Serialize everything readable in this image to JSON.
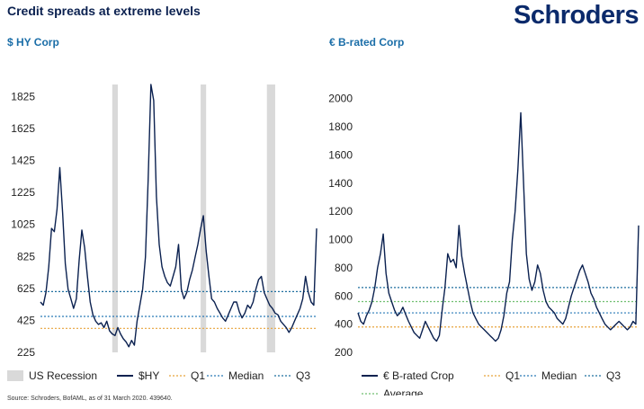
{
  "header": {
    "title": "Credit spreads at extreme levels",
    "logo": "Schroders"
  },
  "footer": {
    "source": "Source: Schroders, BofAML, as of 31 March 2020. 439640."
  },
  "colors": {
    "line": "#0b2150",
    "recession": "#d9d9d9",
    "q1": "#e8a33b",
    "median": "#2a7ab8",
    "q3": "#1f6f9f",
    "average": "#6fbf6f"
  },
  "chart_data": [
    {
      "type": "line",
      "title": "$ HY Corp",
      "ylim": [
        225,
        1900
      ],
      "yticks": [
        225,
        425,
        625,
        825,
        1025,
        1225,
        1425,
        1625,
        1825
      ],
      "x": [
        0,
        1,
        2,
        3,
        4,
        5,
        6,
        7,
        8,
        9,
        10,
        11,
        12,
        13,
        14,
        15,
        16,
        17,
        18,
        19,
        20,
        21,
        22,
        23,
        24,
        25,
        26,
        27,
        28,
        29,
        30,
        31,
        32,
        33,
        34,
        35,
        36,
        37,
        38,
        39,
        40,
        41,
        42,
        43,
        44,
        45,
        46,
        47,
        48,
        49,
        50,
        51,
        52,
        53,
        54,
        55,
        56,
        57,
        58,
        59,
        60,
        61,
        62,
        63,
        64,
        65,
        66,
        67,
        68,
        69,
        70,
        71,
        72,
        73,
        74,
        75,
        76,
        77,
        78,
        79,
        80,
        81,
        82,
        83,
        84,
        85,
        86,
        87,
        88,
        89,
        90,
        91,
        92,
        93,
        94,
        95,
        96,
        97,
        98,
        99,
        100
      ],
      "series": [
        {
          "name": "$HY",
          "values": [
            540,
            520,
            600,
            760,
            1000,
            980,
            1120,
            1380,
            1100,
            780,
            620,
            560,
            500,
            560,
            800,
            990,
            880,
            700,
            540,
            460,
            420,
            400,
            410,
            380,
            420,
            360,
            340,
            330,
            380,
            340,
            310,
            290,
            260,
            300,
            270,
            420,
            520,
            620,
            820,
            1300,
            1900,
            1800,
            1200,
            900,
            760,
            700,
            660,
            640,
            700,
            760,
            900,
            620,
            560,
            600,
            680,
            740,
            820,
            900,
            1000,
            1080,
            860,
            700,
            560,
            540,
            500,
            470,
            440,
            420,
            460,
            500,
            540,
            540,
            480,
            440,
            470,
            520,
            500,
            540,
            620,
            680,
            700,
            600,
            560,
            520,
            500,
            470,
            460,
            420,
            400,
            380,
            350,
            380,
            420,
            460,
            500,
            560,
            700,
            600,
            540,
            520,
            1000
          ]
        }
      ],
      "recessions": [
        [
          26,
          28
        ],
        [
          58,
          60
        ],
        [
          82,
          85
        ]
      ],
      "reference_lines": {
        "Q1": 375,
        "Median": 450,
        "Q3": 605
      },
      "legend": [
        "US Recession",
        "$HY",
        "Q1",
        "Median",
        "Q3"
      ]
    },
    {
      "type": "line",
      "title": "€ B-rated Corp",
      "ylim": [
        200,
        2100
      ],
      "yticks": [
        200,
        400,
        600,
        800,
        1000,
        1200,
        1400,
        1600,
        1800,
        2000
      ],
      "x": [
        0,
        1,
        2,
        3,
        4,
        5,
        6,
        7,
        8,
        9,
        10,
        11,
        12,
        13,
        14,
        15,
        16,
        17,
        18,
        19,
        20,
        21,
        22,
        23,
        24,
        25,
        26,
        27,
        28,
        29,
        30,
        31,
        32,
        33,
        34,
        35,
        36,
        37,
        38,
        39,
        40,
        41,
        42,
        43,
        44,
        45,
        46,
        47,
        48,
        49,
        50,
        51,
        52,
        53,
        54,
        55,
        56,
        57,
        58,
        59,
        60,
        61,
        62,
        63,
        64,
        65,
        66,
        67,
        68,
        69,
        70,
        71,
        72,
        73,
        74,
        75,
        76,
        77,
        78,
        79,
        80,
        81,
        82,
        83,
        84,
        85,
        86,
        87,
        88,
        89,
        90,
        91,
        92,
        93,
        94,
        95,
        96,
        97,
        98,
        99,
        100
      ],
      "series": [
        {
          "name": "€ B-rated Crop",
          "values": [
            480,
            420,
            400,
            460,
            500,
            560,
            660,
            800,
            900,
            1040,
            760,
            620,
            560,
            500,
            460,
            480,
            520,
            470,
            420,
            380,
            340,
            320,
            300,
            360,
            420,
            380,
            340,
            300,
            280,
            320,
            500,
            660,
            900,
            840,
            860,
            800,
            1100,
            880,
            760,
            660,
            560,
            480,
            440,
            400,
            380,
            360,
            340,
            320,
            300,
            280,
            300,
            360,
            460,
            620,
            700,
            1000,
            1200,
            1500,
            1900,
            1400,
            900,
            720,
            640,
            700,
            820,
            760,
            640,
            560,
            520,
            500,
            480,
            440,
            420,
            400,
            440,
            520,
            600,
            660,
            720,
            780,
            820,
            760,
            700,
            620,
            580,
            520,
            480,
            440,
            400,
            380,
            360,
            380,
            400,
            420,
            400,
            380,
            360,
            380,
            420,
            400,
            1100
          ]
        }
      ],
      "reference_lines": {
        "Q1": 380,
        "Median": 480,
        "Q3": 660,
        "Average": 560
      },
      "legend": [
        "€ B-rated Crop",
        "Q1",
        "Median",
        "Q3",
        "Average"
      ]
    }
  ]
}
